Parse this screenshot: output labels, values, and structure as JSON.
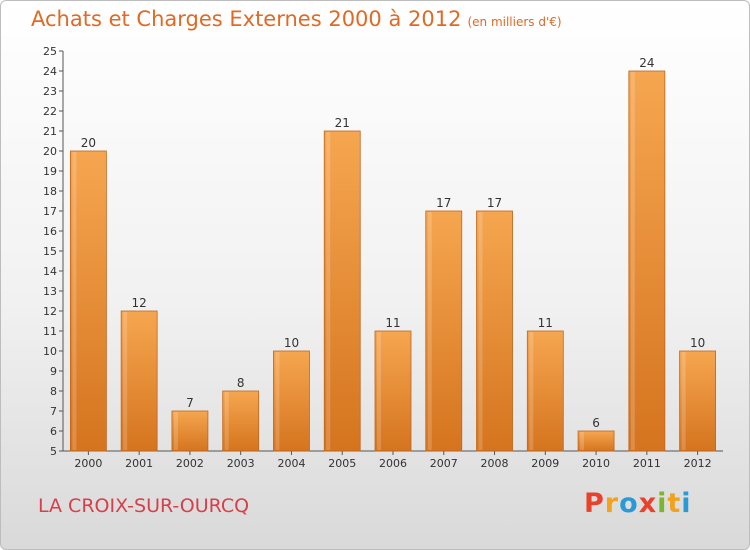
{
  "title": "Achats et Charges Externes 2000 à 2012",
  "unit_label": "(en milliers d'€)",
  "commune": "LA CROIX-SUR-OURCQ",
  "logo": {
    "letters": [
      "P",
      "r",
      "o",
      "x",
      "i",
      "t",
      "i"
    ],
    "colors": [
      "#e8412c",
      "#f2a21d",
      "#2a9ad6",
      "#e8412c",
      "#7bb62d",
      "#f2a21d",
      "#2a9ad6"
    ]
  },
  "colors": {
    "bar_light": "#f6a650",
    "bar_dark": "#d5741f",
    "title": "#e06a25",
    "commune": "#d7404a"
  },
  "chart_data": {
    "type": "bar",
    "categories": [
      "2000",
      "2001",
      "2002",
      "2003",
      "2004",
      "2005",
      "2006",
      "2007",
      "2008",
      "2009",
      "2010",
      "2011",
      "2012"
    ],
    "values": [
      20,
      12,
      7,
      8,
      10,
      21,
      11,
      17,
      17,
      11,
      6,
      24,
      10
    ],
    "title": "Achats et Charges Externes 2000 à 2012",
    "xlabel": "",
    "ylabel": "",
    "ylim": [
      5,
      25
    ],
    "yticks": [
      5,
      6,
      7,
      8,
      9,
      10,
      11,
      12,
      13,
      14,
      15,
      16,
      17,
      18,
      19,
      20,
      21,
      22,
      23,
      24,
      25
    ],
    "grid": false,
    "legend": "none"
  }
}
